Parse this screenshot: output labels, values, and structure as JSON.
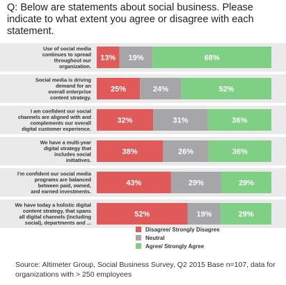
{
  "question": "Q: Below are statements about social business. Please indicate to what extent you agree or disagree with each statement.",
  "source": "Source: Altimeter Group, Social Business Survey, Q2 2015 Base n=107, data for organizations with > 250 employees",
  "colors": {
    "disagree": "#e05a5a",
    "neutral": "#a6a6a8",
    "agree": "#7fcf85",
    "rowbg": "#eaeaea"
  },
  "chart_data": {
    "type": "bar",
    "orientation": "horizontal-stacked-100",
    "categories": [
      [
        "Use of social media",
        "continues to spread",
        "throughout our",
        "organization."
      ],
      [
        "Social media is driving",
        "demand for an",
        "overall enterprise",
        "content strategy."
      ],
      [
        "I am confident our social",
        "channels are aligned with and",
        "complements our overall",
        "digital customer experience."
      ],
      [
        "We have a multi-year",
        "digital strategy that",
        "includes social",
        "initiatives."
      ],
      [
        "I'm confident our social media",
        "programs are balanced",
        "between paid, owned,",
        "and earned investments."
      ],
      [
        "We have today a holistic digital",
        "content strategy, that spans",
        "all digital channels (including",
        "social), departments and ..."
      ]
    ],
    "series": [
      {
        "name": "Disagree/ Strongly Disagree",
        "values": [
          13,
          25,
          32,
          38,
          43,
          52
        ]
      },
      {
        "name": "Neutral",
        "values": [
          19,
          24,
          31,
          26,
          29,
          19
        ]
      },
      {
        "name": "Agree/ Strongly Agree",
        "values": [
          68,
          52,
          36,
          36,
          29,
          29
        ]
      }
    ],
    "value_suffix": "%",
    "legend_position": "bottom"
  }
}
